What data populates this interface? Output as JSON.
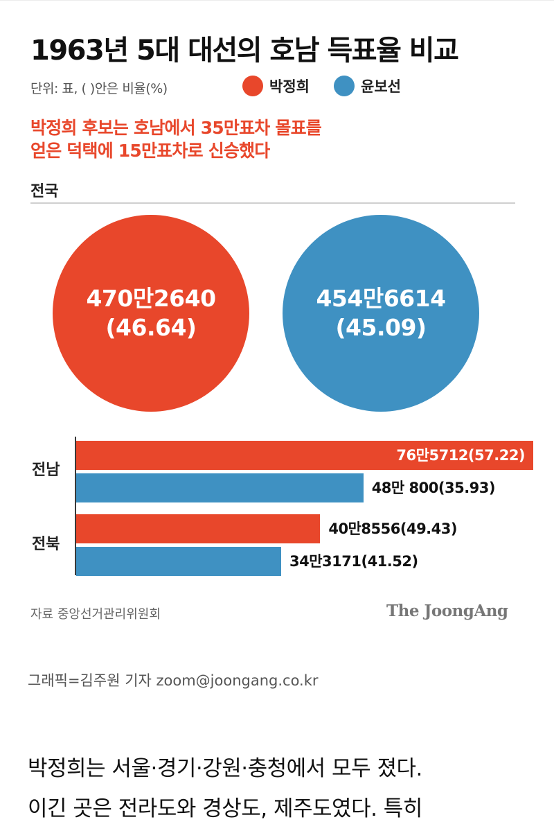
{
  "header": {
    "title": "1963년 5대 대선의 호남 득표율 비교",
    "unit": "단위: 표, ( )안은 비율(%)",
    "subtitle_lines": [
      "박정희 후보는 호남에서 35만표차 몰표를",
      "얻은 덕택에 15만표차로 신승했다"
    ]
  },
  "legend": [
    {
      "name": "박정희",
      "color": "#e8472b"
    },
    {
      "name": "윤보선",
      "color": "#3f91c2"
    }
  ],
  "chart_data": {
    "type": "bar",
    "national": {
      "section_label": "전국",
      "circles": [
        {
          "candidate": "박정희",
          "value_text": "470만2640",
          "pct_text": "(46.64)",
          "votes": 4702640,
          "pct": 46.64,
          "color": "#e8472b"
        },
        {
          "candidate": "윤보선",
          "value_text": "454만6614",
          "pct_text": "(45.09)",
          "votes": 4546614,
          "pct": 45.09,
          "color": "#3f91c2"
        }
      ]
    },
    "categories": [
      "전남",
      "전북"
    ],
    "series": [
      {
        "name": "박정희",
        "color": "#e8472b",
        "values": [
          765712,
          408556
        ],
        "pct": [
          57.22,
          49.43
        ],
        "labels": [
          "76만5712(57.22)",
          "40만8556(49.43)"
        ]
      },
      {
        "name": "윤보선",
        "color": "#3f91c2",
        "values": [
          480800,
          343171
        ],
        "pct": [
          35.93,
          41.52
        ],
        "labels": [
          "48만 800(35.93)",
          "34만3171(41.52)"
        ]
      }
    ],
    "xlim": [
      0,
      800000
    ]
  },
  "footer": {
    "source": "자료 중앙선거관리위원회",
    "logo": "The JoongAng",
    "credit": "그래픽=김주원 기자 zoom@joongang.co.kr"
  },
  "article": {
    "lines": [
      "박정희는 서울·경기·강원·충청에서 모두 졌다.",
      "이긴 곳은 전라도와 경상도, 제주도였다. 특히"
    ]
  }
}
